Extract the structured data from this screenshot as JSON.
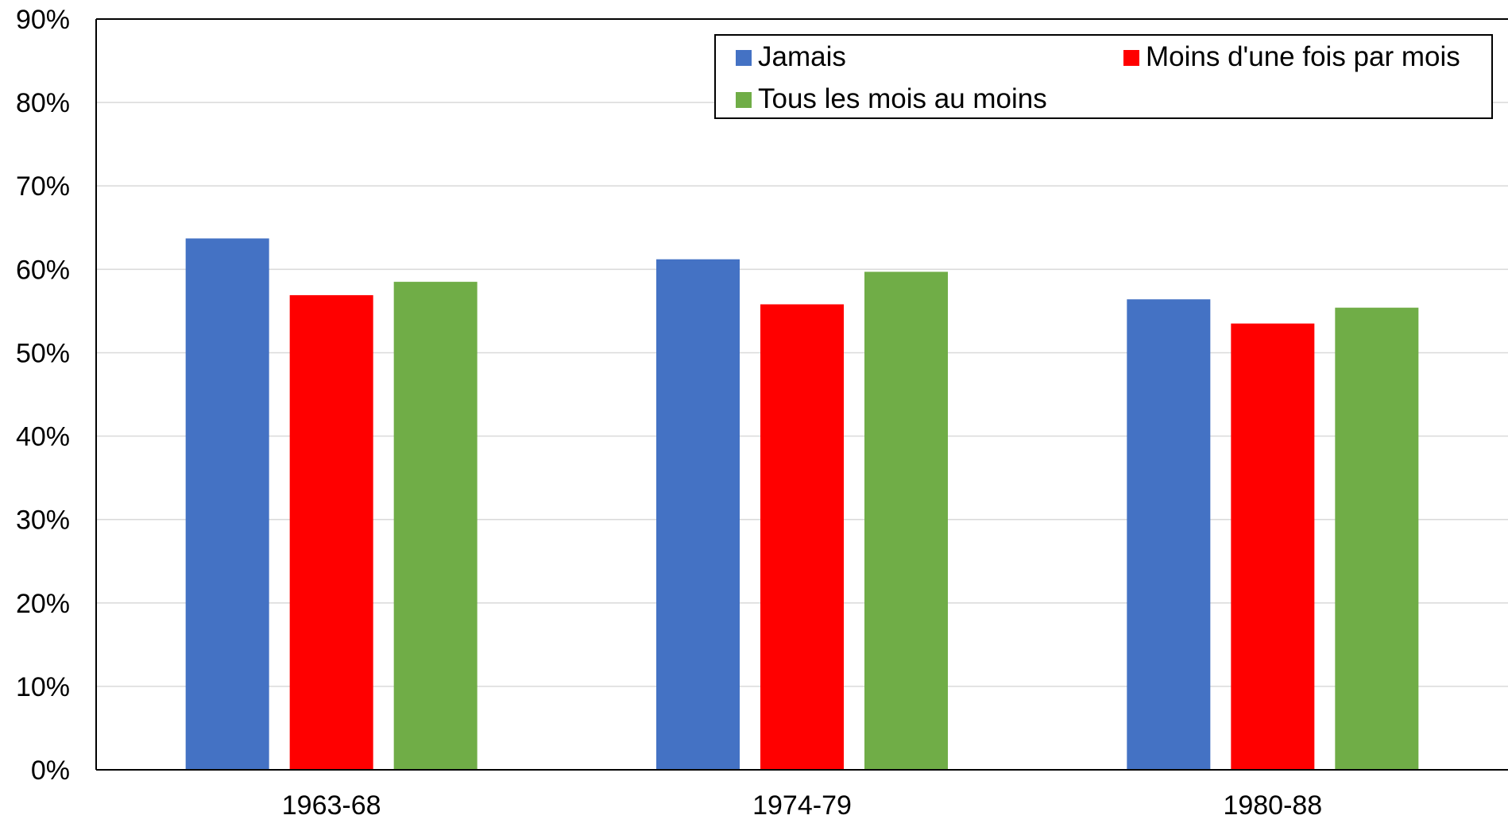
{
  "chart_data": {
    "type": "bar",
    "title": "",
    "xlabel": "",
    "ylabel": "",
    "ylim": [
      0,
      90
    ],
    "y_tick_step": 10,
    "y_tick_format": "percent",
    "grid": true,
    "legend_position": "top-right",
    "categories": [
      "1963-68",
      "1974-79",
      "1980-88"
    ],
    "series": [
      {
        "name": "Jamais",
        "color": "#4472C4",
        "values": [
          63.7,
          61.2,
          56.4
        ]
      },
      {
        "name": "Moins d'une fois par mois",
        "color": "#FF0000",
        "values": [
          56.9,
          55.8,
          53.5
        ]
      },
      {
        "name": "Tous les mois au moins",
        "color": "#70AD47",
        "values": [
          58.5,
          59.7,
          55.4
        ]
      }
    ]
  }
}
